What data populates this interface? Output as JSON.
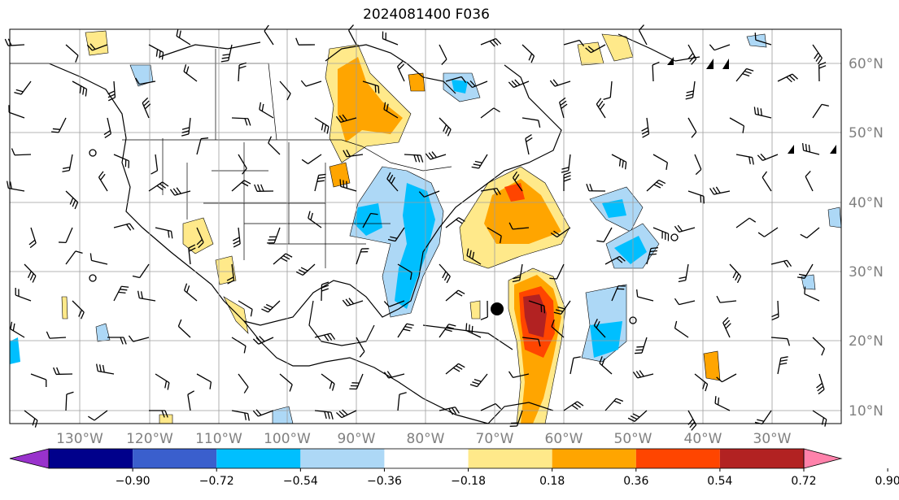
{
  "title": "2024081400 F036",
  "lon_labels": [
    "130°W",
    "120°W",
    "110°W",
    "100°W",
    "90°W",
    "80°W",
    "70°W",
    "60°W",
    "50°W",
    "40°W",
    "30°W"
  ],
  "lat_labels": [
    "60°N",
    "50°N",
    "40°N",
    "30°N",
    "20°N",
    "10°N"
  ],
  "colorbar": {
    "ticks": [
      "−0.90",
      "−0.72",
      "−0.54",
      "−0.36",
      "−0.18",
      "0.18",
      "0.36",
      "0.54",
      "0.72",
      "0.90"
    ],
    "colors": [
      "#9932cc",
      "#00008b",
      "#3a5fcd",
      "#00bfff",
      "#add8f6",
      "#ffffff",
      "#ffe98a",
      "#ffa500",
      "#ff4500",
      "#b22222",
      "#ff82ab"
    ]
  }
}
